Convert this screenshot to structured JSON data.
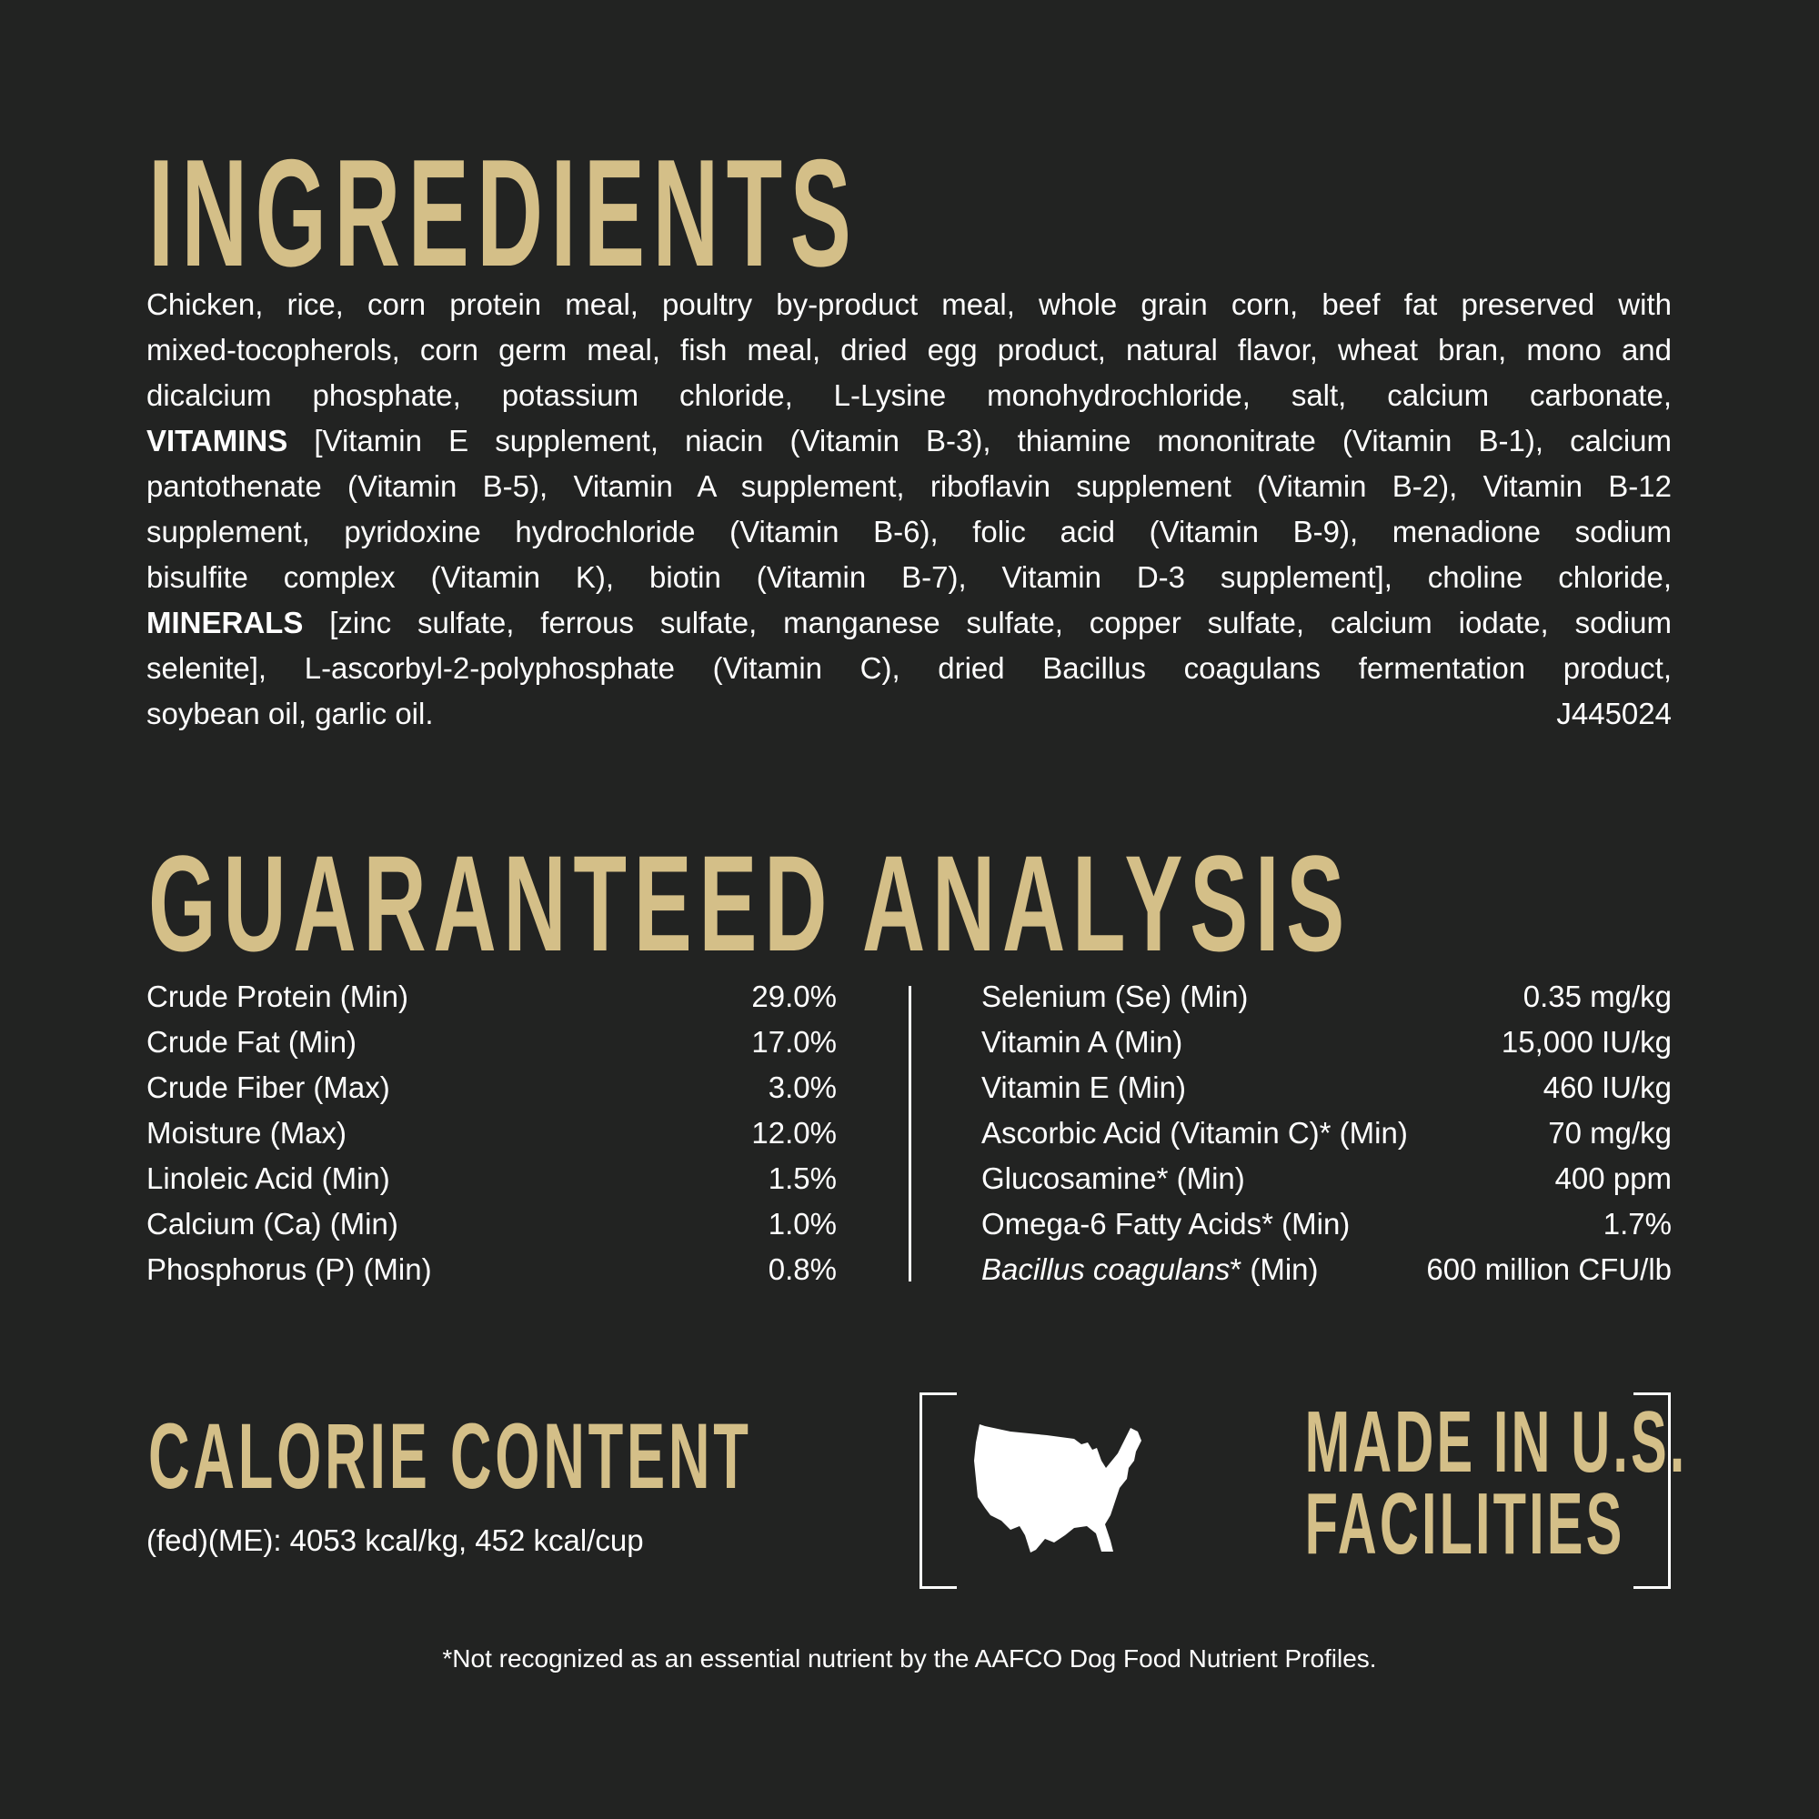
{
  "colors": {
    "background": "#222322",
    "accent": "#d4bf88",
    "text": "#ffffff"
  },
  "ingredients": {
    "title": "INGREDIENTS",
    "lines": [
      {
        "bold": "",
        "text": "Chicken, rice, corn protein meal, poultry by-product meal, whole grain corn, beef fat preserved with"
      },
      {
        "bold": "",
        "text": "mixed-tocopherols, corn germ meal, fish meal, dried egg product, natural flavor, wheat bran, mono and"
      },
      {
        "bold": "",
        "text": "dicalcium phosphate, potassium chloride, L-Lysine monohydrochloride, salt, calcium carbonate,"
      },
      {
        "bold": "VITAMINS",
        "text": " [Vitamin E supplement, niacin (Vitamin B-3), thiamine mononitrate (Vitamin B-1), calcium"
      },
      {
        "bold": "",
        "text": "pantothenate (Vitamin B-5), Vitamin A supplement, riboflavin supplement (Vitamin B-2), Vitamin B-12"
      },
      {
        "bold": "",
        "text": "supplement, pyridoxine hydrochloride (Vitamin B-6), folic acid (Vitamin B-9), menadione sodium"
      },
      {
        "bold": "",
        "text": "bisulfite complex (Vitamin K), biotin (Vitamin B-7), Vitamin D-3 supplement], choline chloride,"
      },
      {
        "bold": "MINERALS",
        "text": " [zinc sulfate, ferrous sulfate, manganese sulfate, copper sulfate, calcium iodate, sodium"
      },
      {
        "bold": "",
        "text": "selenite], L-ascorbyl-2-polyphosphate (Vitamin C), dried Bacillus coagulans fermentation product,"
      }
    ],
    "last_line": "soybean oil, garlic oil.",
    "code": "J445024"
  },
  "analysis": {
    "title": "GUARANTEED ANALYSIS",
    "left": [
      {
        "name": "Crude Protein (Min)",
        "value": "29.0%"
      },
      {
        "name": "Crude Fat (Min)",
        "value": "17.0%"
      },
      {
        "name": "Crude Fiber (Max)",
        "value": "3.0%"
      },
      {
        "name": "Moisture (Max)",
        "value": "12.0%"
      },
      {
        "name": "Linoleic Acid (Min)",
        "value": "1.5%"
      },
      {
        "name": "Calcium (Ca) (Min)",
        "value": "1.0%"
      },
      {
        "name": "Phosphorus (P) (Min)",
        "value": "0.8%"
      }
    ],
    "right": [
      {
        "name": "Selenium (Se) (Min)",
        "value": "0.35 mg/kg"
      },
      {
        "name": "Vitamin A (Min)",
        "value": "15,000 IU/kg"
      },
      {
        "name": "Vitamin E (Min)",
        "value": "460 IU/kg"
      },
      {
        "name": "Ascorbic Acid (Vitamin C)* (Min)",
        "value": "70 mg/kg"
      },
      {
        "name": "Glucosamine* (Min)",
        "value": "400 ppm"
      },
      {
        "name": "Omega-6 Fatty Acids* (Min)",
        "value": "1.7%"
      }
    ],
    "bacillus": {
      "italic": "Bacillus coagulans",
      "rest": "* (Min)",
      "value": "600 million CFU/lb"
    }
  },
  "calorie": {
    "title": "CALORIE CONTENT",
    "text": "(fed)(ME): 4053 kcal/kg, 452 kcal/cup"
  },
  "made_in": {
    "line1": "MADE IN U.S.",
    "line2": "FACILITIES",
    "icon": "usa-map-icon"
  },
  "footnote": "*Not recognized as an essential nutrient by the AAFCO Dog Food Nutrient Profiles."
}
